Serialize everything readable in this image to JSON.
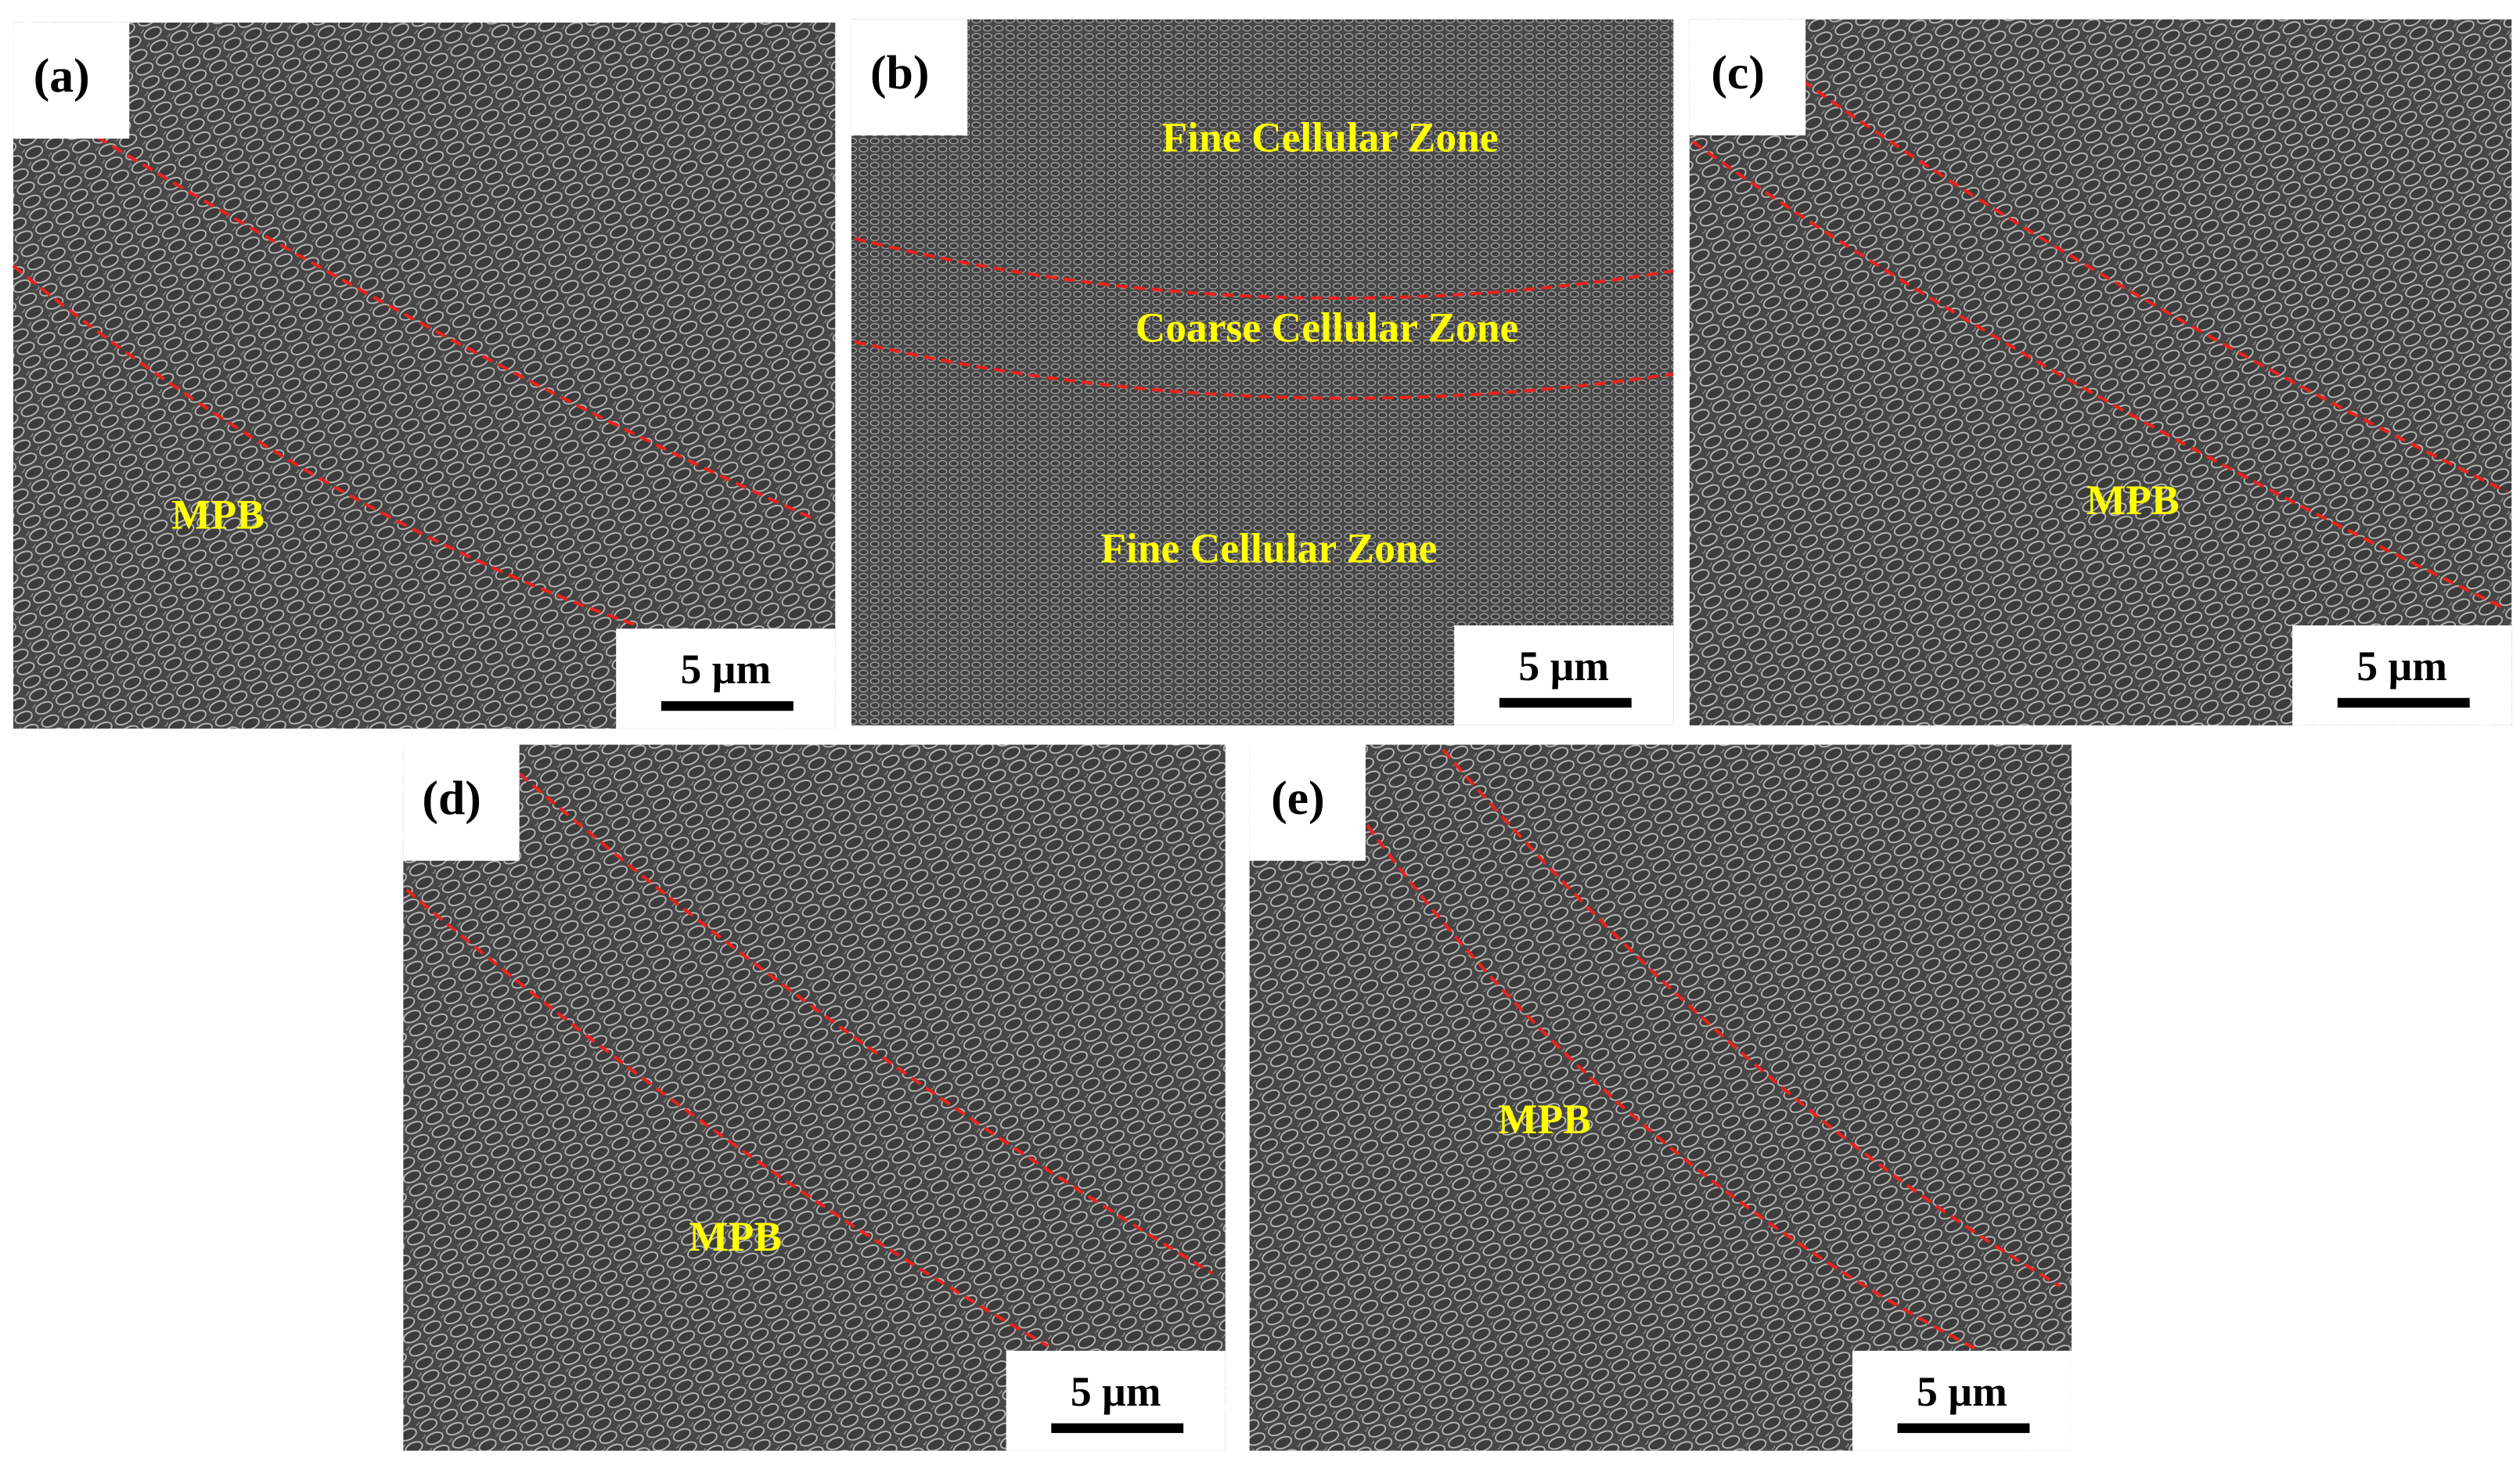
{
  "panels": [
    {
      "label": "(a)",
      "annotations": [
        "MPB"
      ],
      "scale_bar": "5 µm"
    },
    {
      "label": "(b)",
      "annotations": [
        "Fine Cellular Zone",
        "Coarse Cellular Zone",
        "Fine Cellular Zone"
      ],
      "scale_bar": "5 µm"
    },
    {
      "label": "(c)",
      "annotations": [
        "MPB"
      ],
      "scale_bar": "5 µm"
    },
    {
      "label": "(d)",
      "annotations": [
        "MPB"
      ],
      "scale_bar": "5 µm"
    },
    {
      "label": "(e)",
      "annotations": [
        "MPB"
      ],
      "scale_bar": "5 µm"
    }
  ]
}
